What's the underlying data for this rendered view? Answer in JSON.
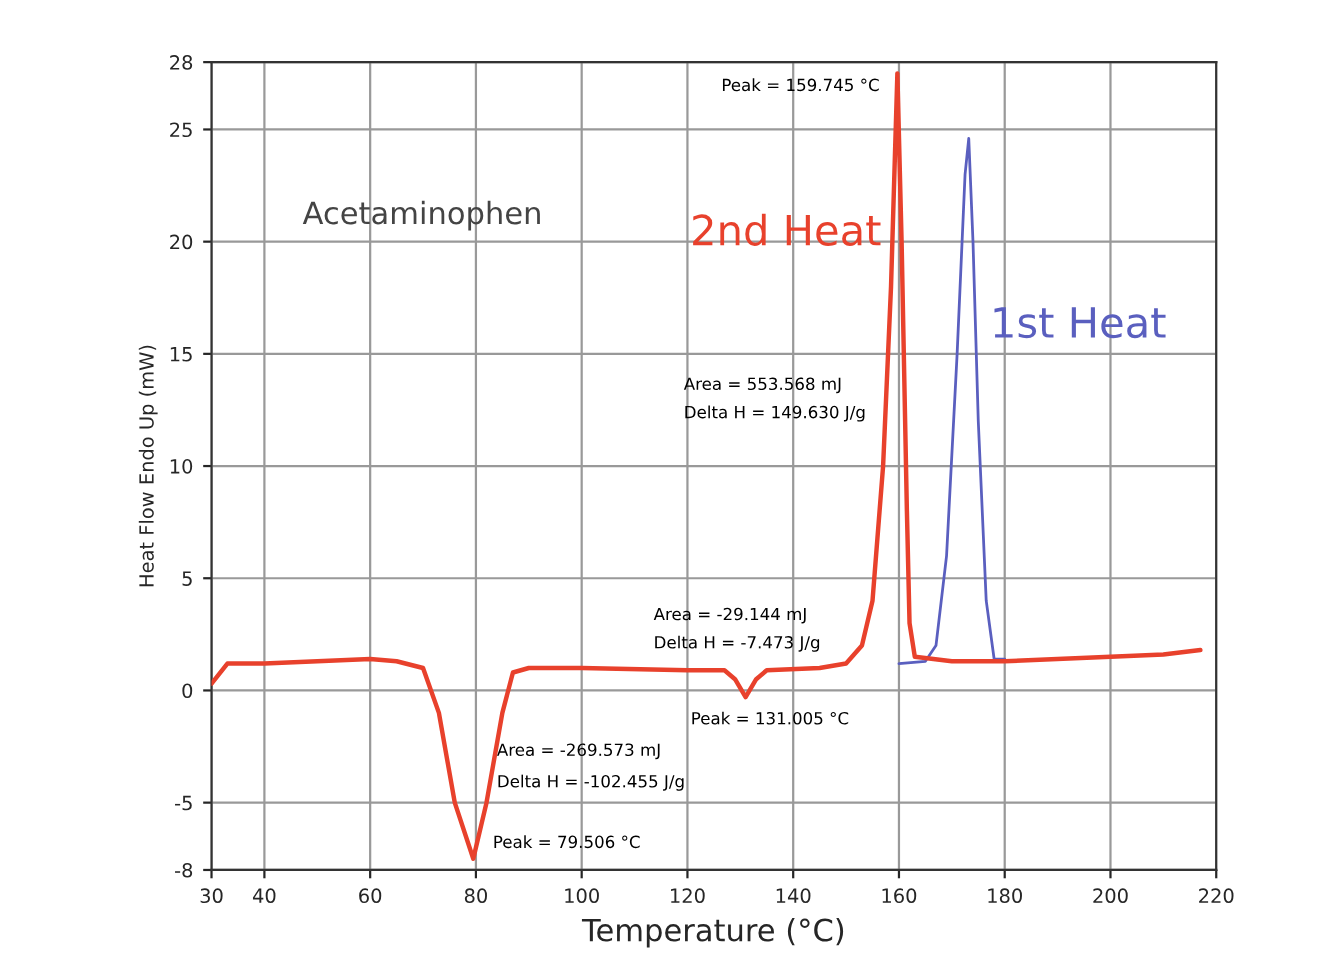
{
  "chart_data": {
    "type": "line",
    "xlabel": "Temperature (°C)",
    "ylabel": "Heat Flow Endo Up (mW)",
    "xlim": [
      30,
      220
    ],
    "xticks": [
      30,
      40,
      60,
      80,
      100,
      120,
      140,
      160,
      180,
      200,
      220
    ],
    "ylim": [
      -8,
      28
    ],
    "yticks": [
      -8,
      -5,
      0,
      5,
      10,
      15,
      20,
      25,
      28
    ],
    "grid": true,
    "legend": false,
    "marker": "none",
    "line_style": "solid",
    "series": [
      {
        "name": "2nd Heat",
        "color": "#e8412c",
        "x": [
          30,
          33,
          40,
          50,
          60,
          65,
          70,
          73,
          76,
          79.5,
          82,
          85,
          87,
          90,
          100,
          120,
          127,
          129,
          131,
          133,
          135,
          145,
          150,
          153,
          155,
          157,
          158.5,
          159.7,
          160.5,
          161.5,
          162,
          163,
          170,
          180,
          200,
          210,
          217
        ],
        "values": [
          0.3,
          1.2,
          1.2,
          1.3,
          1.4,
          1.3,
          1.0,
          -1,
          -5,
          -7.5,
          -5,
          -1,
          0.8,
          1.0,
          1.0,
          0.9,
          0.9,
          0.5,
          -0.3,
          0.5,
          0.9,
          1.0,
          1.2,
          2,
          4,
          10,
          18,
          27.5,
          20,
          8,
          3,
          1.5,
          1.3,
          1.3,
          1.5,
          1.6,
          1.8
        ]
      },
      {
        "name": "1st Heat",
        "color": "#5a5fbf",
        "x": [
          160,
          165,
          167,
          169,
          171,
          172.5,
          173.2,
          174,
          175,
          176.5,
          178,
          180
        ],
        "values": [
          1.2,
          1.3,
          2,
          6,
          15,
          23,
          24.6,
          20,
          12,
          4,
          1.4,
          1.4
        ]
      }
    ],
    "annotations": [
      "Acetaminophen",
      "Peak = 159.745 °C",
      "Area = 553.568 mJ",
      "Delta H = 149.630 J/g",
      "Area = -29.144 mJ",
      "Delta H = -7.473 J/g",
      "Peak = 131.005 °C",
      "Area = -269.573 mJ",
      "Delta H = -102.455 J/g",
      "Peak = 79.506 °C"
    ]
  }
}
